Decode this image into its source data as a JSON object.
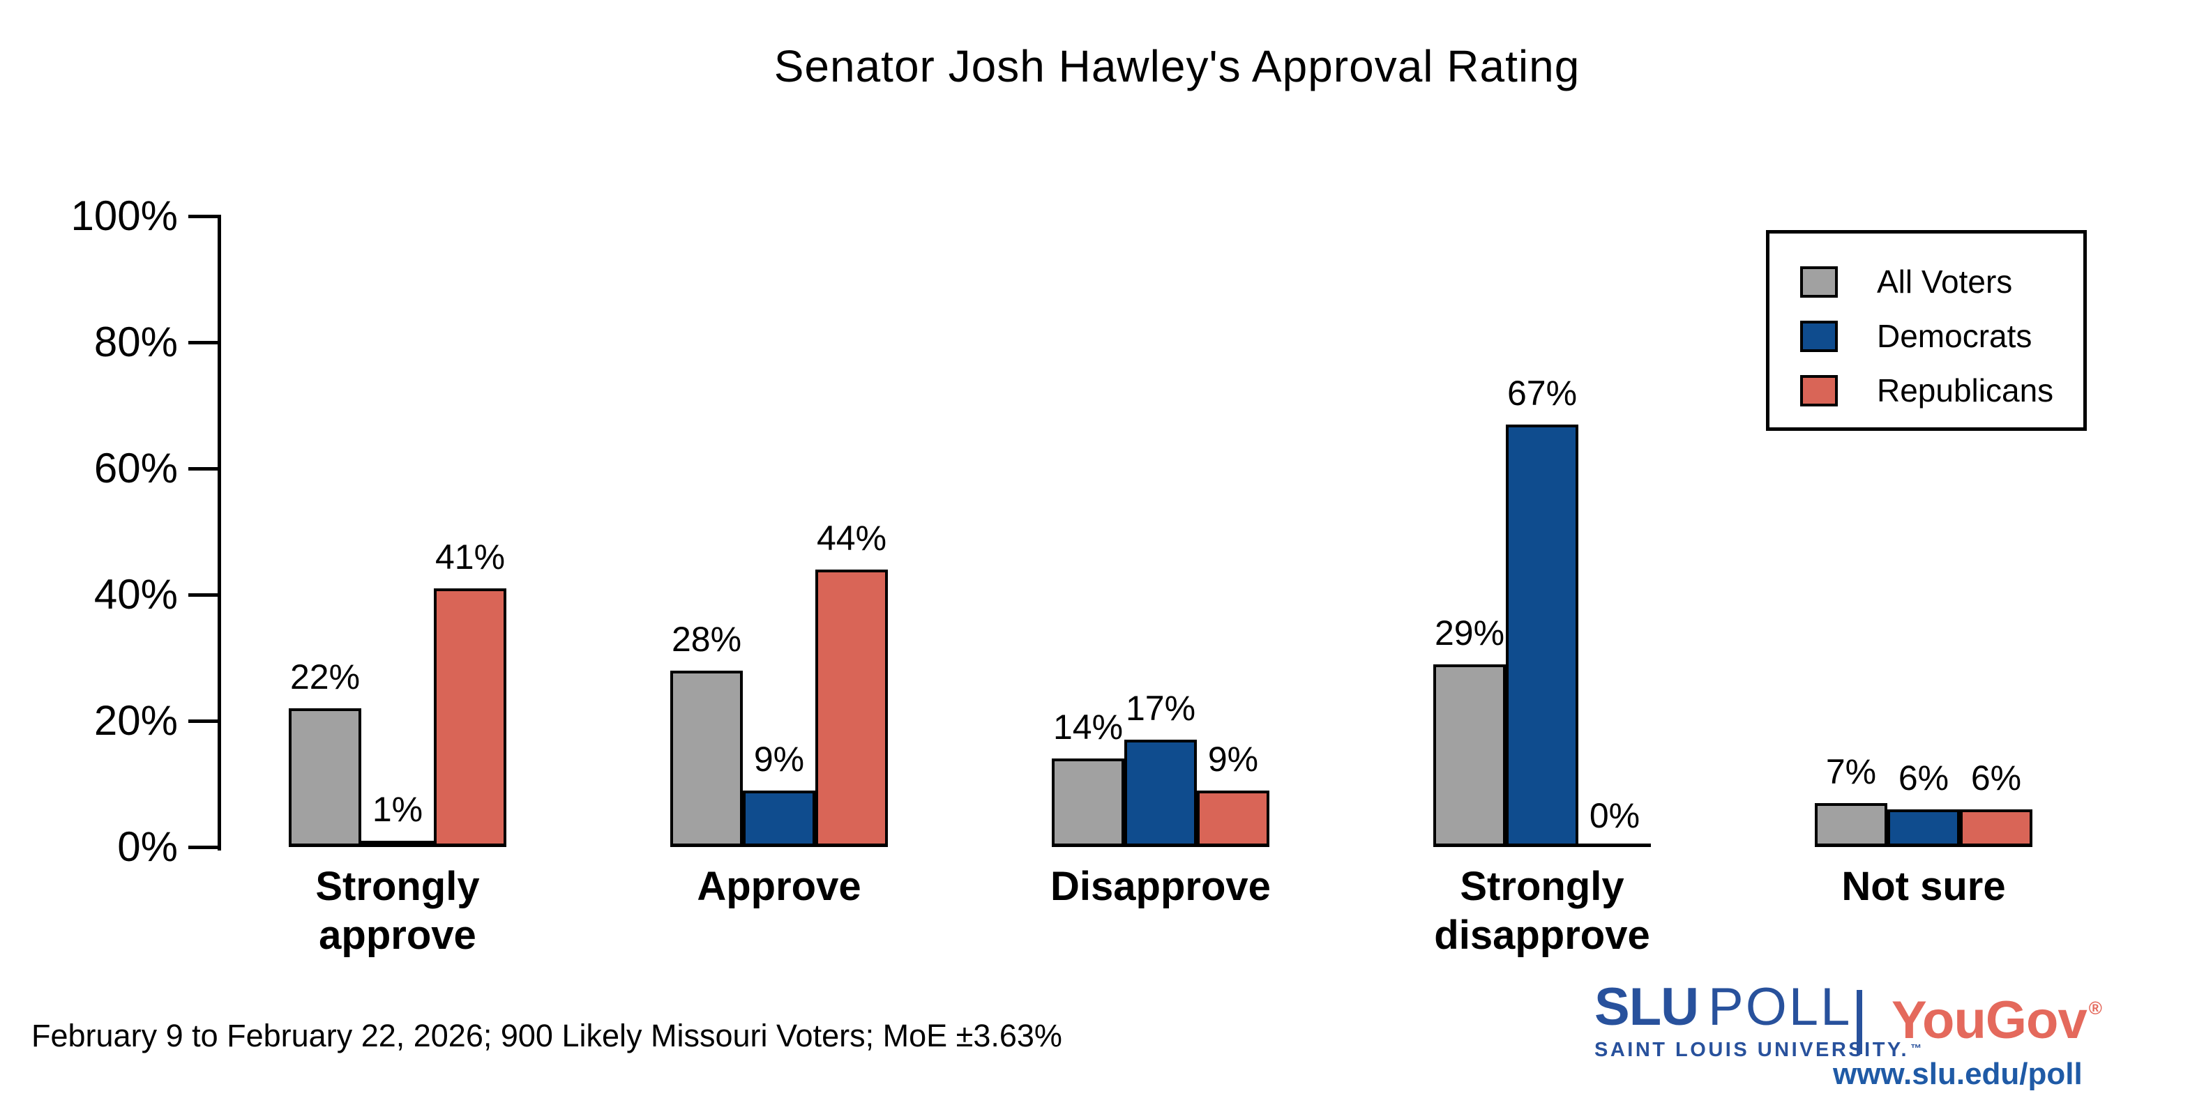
{
  "title": "Senator Josh Hawley's Approval Rating",
  "footer": "February 9 to February 22, 2026; 900 Likely Missouri Voters; MoE ±3.63%",
  "branding": {
    "slu_name": "SLU",
    "slu_poll_word": "POLL",
    "slu_sub": "SAINT LOUIS UNIVERSITY.",
    "slu_tm": "™",
    "partner": "YouGov",
    "partner_reg": "®",
    "url": "www.slu.edu/poll",
    "slu_blue": "#28519c",
    "yougov_red": "#e4695c",
    "url_blue": "#1f5aa6"
  },
  "chart_data": {
    "type": "bar",
    "title": "Senator Josh Hawley's Approval Rating",
    "categories": [
      "Strongly\napprove",
      "Approve",
      "Disapprove",
      "Strongly\ndisapprove",
      "Not sure"
    ],
    "series": [
      {
        "name": "All Voters",
        "color": "#a1a1a1",
        "values": [
          22,
          28,
          14,
          29,
          7
        ]
      },
      {
        "name": "Democrats",
        "color": "#0f4c8e",
        "values": [
          1,
          9,
          17,
          67,
          6
        ]
      },
      {
        "name": "Republicans",
        "color": "#d96557",
        "values": [
          41,
          44,
          9,
          0,
          6
        ]
      }
    ],
    "value_suffix": "%",
    "xlabel": "",
    "ylabel": "",
    "ylim": [
      0,
      100
    ],
    "yticks": [
      "0%",
      "20%",
      "40%",
      "60%",
      "80%",
      "100%"
    ],
    "grid": false,
    "legend_position": "top-right",
    "bar_outline": "#000000",
    "source": "February 9 to February 22, 2026; 900 Likely Missouri Voters; MoE ±3.63%"
  }
}
